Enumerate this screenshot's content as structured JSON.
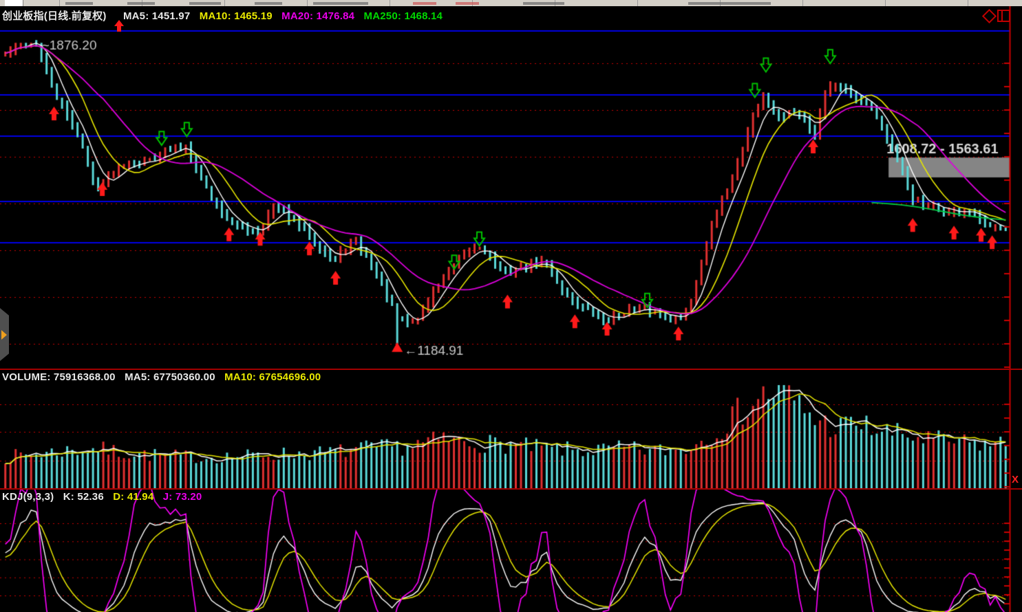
{
  "window": {
    "close_label": "X",
    "icons": [
      "diamond-icon",
      "window-layout-icon",
      "sidebar-expand-arrow-icon",
      "close-x-icon",
      "buy-signal-arrow-icon",
      "sell-signal-arrow-icon"
    ],
    "accent_red": "#c00000",
    "grid_red": "#cc0000",
    "level_blue": "#0000e6"
  },
  "main_header": {
    "instrument": "创业板指(日线.前复权)",
    "ma5": "MA5: 1451.97",
    "ma10": "MA10: 1465.19",
    "ma20": "MA20: 1476.84",
    "ma250": "MA250: 1468.14"
  },
  "volume_header": {
    "volume": "VOLUME: 75916368.00",
    "ma5": "MA5: 67750360.00",
    "ma10": "MA10: 67654696.00"
  },
  "kdj_header": {
    "name": "KDJ(9,3,3)",
    "k": "K: 52.36",
    "d": "D: 41.94",
    "j": "J: 73.20"
  },
  "chart_data": [
    {
      "type": "candlestick",
      "title": "创业板指(日线.前复权)",
      "bars": 195,
      "ylim": [
        1133,
        1908
      ],
      "grid": "red-dotted-horizontal",
      "up_color": "#e03030",
      "down_color": "#5ad8d8",
      "ma_values": {
        "MA5": 1451.97,
        "MA10": 1465.19,
        "MA20": 1476.84,
        "MA250": 1468.14
      },
      "ma_colors": {
        "MA5": "#ffffff",
        "MA10": "#e6e600",
        "MA20": "#dd00dd",
        "MA250": "#00cc44"
      },
      "high_annotation": {
        "text": "~1876.20",
        "price": 1876.2,
        "x": 0.031
      },
      "low_annotation": {
        "text": "←1184.91",
        "price": 1184.91,
        "x": 0.392
      },
      "range_box": {
        "label": "1608.72 - 1563.61",
        "from": 1608.72,
        "to": 1563.61,
        "x_start": 0.881,
        "color": "#858585"
      },
      "blue_levels": [
        1897,
        1751,
        1657,
        1508,
        1415
      ],
      "ma250_segment": {
        "x_start": 0.868,
        "from": 1506,
        "to": 1468
      },
      "close_waypoints": [
        [
          0,
          1845
        ],
        [
          0.014,
          1868
        ],
        [
          0.031,
          1874
        ],
        [
          0.041,
          1800
        ],
        [
          0.051,
          1748
        ],
        [
          0.061,
          1705
        ],
        [
          0.075,
          1652
        ],
        [
          0.087,
          1553
        ],
        [
          0.097,
          1547
        ],
        [
          0.109,
          1580
        ],
        [
          0.123,
          1602
        ],
        [
          0.136,
          1597
        ],
        [
          0.151,
          1612
        ],
        [
          0.167,
          1626
        ],
        [
          0.18,
          1638
        ],
        [
          0.194,
          1572
        ],
        [
          0.206,
          1517
        ],
        [
          0.218,
          1478
        ],
        [
          0.229,
          1452
        ],
        [
          0.243,
          1447
        ],
        [
          0.255,
          1441
        ],
        [
          0.267,
          1496
        ],
        [
          0.28,
          1482
        ],
        [
          0.29,
          1458
        ],
        [
          0.304,
          1432
        ],
        [
          0.315,
          1403
        ],
        [
          0.329,
          1372
        ],
        [
          0.339,
          1401
        ],
        [
          0.349,
          1416
        ],
        [
          0.359,
          1392
        ],
        [
          0.369,
          1352
        ],
        [
          0.38,
          1302
        ],
        [
          0.39,
          1248
        ],
        [
          0.394,
          1237
        ],
        [
          0.409,
          1232
        ],
        [
          0.436,
          1330
        ],
        [
          0.461,
          1391
        ],
        [
          0.476,
          1408
        ],
        [
          0.498,
          1346
        ],
        [
          0.519,
          1362
        ],
        [
          0.539,
          1371
        ],
        [
          0.559,
          1301
        ],
        [
          0.579,
          1266
        ],
        [
          0.6,
          1237
        ],
        [
          0.62,
          1259
        ],
        [
          0.641,
          1262
        ],
        [
          0.66,
          1250
        ],
        [
          0.675,
          1241
        ],
        [
          0.686,
          1290
        ],
        [
          0.697,
          1382
        ],
        [
          0.709,
          1470
        ],
        [
          0.723,
          1542
        ],
        [
          0.736,
          1622
        ],
        [
          0.747,
          1702
        ],
        [
          0.758,
          1748
        ],
        [
          0.773,
          1694
        ],
        [
          0.785,
          1712
        ],
        [
          0.798,
          1698
        ],
        [
          0.809,
          1662
        ],
        [
          0.819,
          1752
        ],
        [
          0.829,
          1782
        ],
        [
          0.84,
          1761
        ],
        [
          0.852,
          1742
        ],
        [
          0.863,
          1736
        ],
        [
          0.874,
          1692
        ],
        [
          0.883,
          1642
        ],
        [
          0.894,
          1592
        ],
        [
          0.905,
          1521
        ],
        [
          0.918,
          1497
        ],
        [
          0.931,
          1496
        ],
        [
          0.945,
          1481
        ],
        [
          0.958,
          1491
        ],
        [
          0.972,
          1471
        ],
        [
          0.983,
          1447
        ],
        [
          0.992,
          1452
        ],
        [
          1,
          1450
        ]
      ],
      "buy_arrows": [
        [
          0.051,
          1709
        ],
        [
          0.099,
          1537
        ],
        [
          0.225,
          1434
        ],
        [
          0.256,
          1424
        ],
        [
          0.305,
          1402
        ],
        [
          0.331,
          1335
        ],
        [
          0.502,
          1281
        ],
        [
          0.569,
          1236
        ],
        [
          0.601,
          1219
        ],
        [
          0.672,
          1208
        ],
        [
          0.806,
          1634
        ],
        [
          0.905,
          1455
        ],
        [
          0.946,
          1438
        ],
        [
          0.973,
          1433
        ],
        [
          0.984,
          1416
        ]
      ],
      "sell_arrows": [
        [
          0.158,
          1651
        ],
        [
          0.183,
          1671
        ],
        [
          0.449,
          1369
        ],
        [
          0.474,
          1422
        ],
        [
          0.641,
          1282
        ],
        [
          0.748,
          1760
        ],
        [
          0.759,
          1818
        ],
        [
          0.823,
          1837
        ]
      ]
    },
    {
      "type": "bar",
      "title": "VOLUME",
      "current": 75916368.0,
      "ma5": 67750360.0,
      "ma10": 67654696.0,
      "ma_colors": {
        "MA5": "#ffffff",
        "MA10": "#e6e600"
      },
      "height_waypoints": [
        [
          0,
          0.3
        ],
        [
          0.03,
          0.33
        ],
        [
          0.06,
          0.36
        ],
        [
          0.09,
          0.38
        ],
        [
          0.12,
          0.34
        ],
        [
          0.16,
          0.31
        ],
        [
          0.2,
          0.3
        ],
        [
          0.24,
          0.31
        ],
        [
          0.28,
          0.33
        ],
        [
          0.32,
          0.34
        ],
        [
          0.36,
          0.38
        ],
        [
          0.4,
          0.4
        ],
        [
          0.44,
          0.47
        ],
        [
          0.46,
          0.44
        ],
        [
          0.5,
          0.42
        ],
        [
          0.54,
          0.38
        ],
        [
          0.58,
          0.36
        ],
        [
          0.62,
          0.38
        ],
        [
          0.65,
          0.36
        ],
        [
          0.68,
          0.38
        ],
        [
          0.7,
          0.48
        ],
        [
          0.72,
          0.62
        ],
        [
          0.74,
          0.78
        ],
        [
          0.76,
          0.9
        ],
        [
          0.775,
          0.94
        ],
        [
          0.79,
          0.82
        ],
        [
          0.81,
          0.66
        ],
        [
          0.83,
          0.58
        ],
        [
          0.85,
          0.62
        ],
        [
          0.87,
          0.56
        ],
        [
          0.89,
          0.52
        ],
        [
          0.92,
          0.47
        ],
        [
          0.95,
          0.44
        ],
        [
          0.98,
          0.42
        ],
        [
          1,
          0.43
        ]
      ]
    },
    {
      "type": "line",
      "title": "KDJ",
      "params": [
        9,
        3,
        3
      ],
      "k": 52.36,
      "d": 41.94,
      "j": 73.2,
      "colors": {
        "k": "#ffffff",
        "d": "#e6e600",
        "j": "#ff00ff"
      },
      "gridline_values": [
        80,
        65,
        50,
        35,
        20
      ],
      "range": [
        0,
        100
      ]
    }
  ]
}
